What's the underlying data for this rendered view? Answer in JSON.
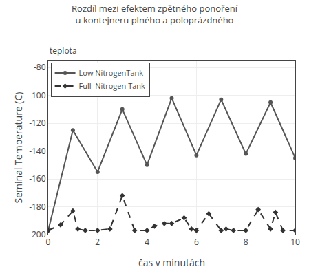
{
  "chart_data": {
    "type": "line",
    "title": "Rozdíl mezi efektem zpětného ponoření\nu kontejneru plného a poloprázdného",
    "xlabel": "čas v minutách",
    "ylabel": "Seminal Temperature (C)",
    "annotations": [
      "teplota"
    ],
    "xlim": [
      0,
      10
    ],
    "ylim": [
      -200,
      -75
    ],
    "xticks": [
      0,
      2,
      4,
      6,
      8,
      10
    ],
    "yticks": [
      -200,
      -180,
      -160,
      -140,
      -120,
      -100,
      -80
    ],
    "grid": true,
    "legend": "upper left",
    "series": [
      {
        "name": "Low NitrogenTank",
        "color": "#555555",
        "line_style": "solid",
        "marker": "circle",
        "x": [
          0,
          1,
          2,
          3,
          4,
          5,
          6,
          7,
          8,
          9,
          10
        ],
        "values": [
          -197,
          -125,
          -155,
          -110,
          -150,
          -102,
          -143,
          -103,
          -142,
          -105,
          -145
        ]
      },
      {
        "name": "Full  Nitrogen Tank",
        "color": "#333333",
        "line_style": "dashed",
        "marker": "diamond",
        "x": [
          0,
          0.5,
          1,
          1.2,
          1.5,
          2,
          2.5,
          3,
          3.5,
          4,
          4.3,
          4.7,
          5,
          5.5,
          5.8,
          6,
          6.5,
          7,
          7.2,
          7.5,
          8,
          8.5,
          9,
          9.2,
          9.5,
          10
        ],
        "values": [
          -197,
          -193,
          -183,
          -196,
          -197,
          -197,
          -196,
          -172,
          -197,
          -197,
          -194,
          -192,
          -192,
          -188,
          -196,
          -197,
          -185,
          -197,
          -196,
          -197,
          -197,
          -182,
          -196,
          -184,
          -197,
          -197
        ]
      }
    ]
  }
}
